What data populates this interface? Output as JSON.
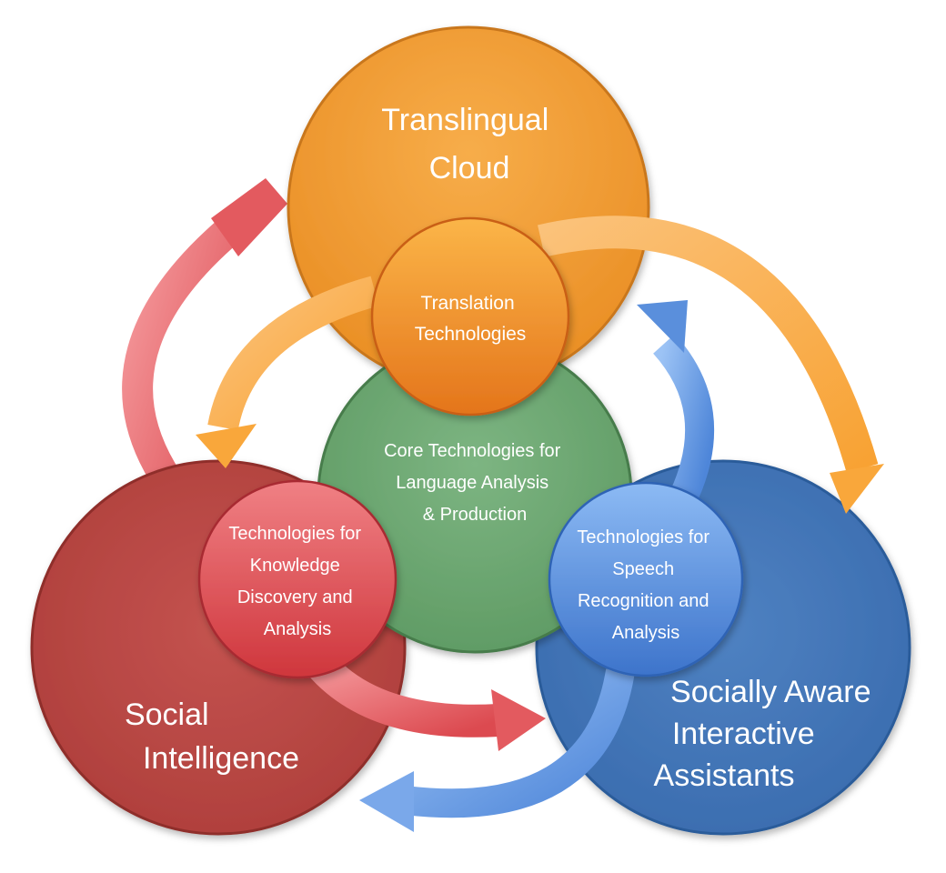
{
  "outer_circles": {
    "translingual_cloud": {
      "lines": [
        "Translingual",
        "Cloud"
      ],
      "color": "#f0a03a"
    },
    "social_intelligence": {
      "lines": [
        "Social",
        "Intelligence"
      ],
      "color": "#c0504d"
    },
    "socially_aware_assistants": {
      "lines": [
        "Socially Aware",
        "Interactive",
        "Assistants"
      ],
      "color": "#4a7fc0"
    }
  },
  "core_circle": {
    "lines": [
      "Core Technologies for",
      "Language Analysis",
      "& Production"
    ],
    "color": "#6aa86f"
  },
  "inner_circles": {
    "translation": {
      "lines": [
        "Translation",
        "Technologies"
      ],
      "color": "#e9862a"
    },
    "knowledge": {
      "lines": [
        "Technologies for",
        "Knowledge",
        "Discovery and",
        "Analysis"
      ],
      "color": "#d9474d"
    },
    "speech": {
      "lines": [
        "Technologies for",
        "Speech",
        "Recognition and",
        "Analysis"
      ],
      "color": "#4f86d6"
    }
  },
  "arrow_colors": {
    "orange": "#f9ad45",
    "red": "#e2585c",
    "blue": "#6a9ee6"
  }
}
